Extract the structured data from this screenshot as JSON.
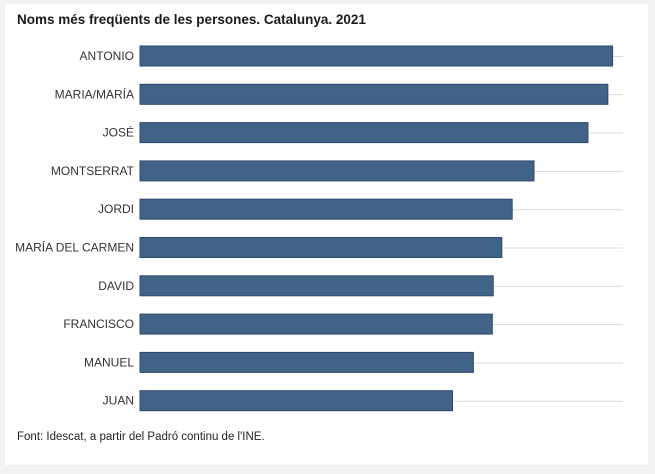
{
  "chart_data": {
    "type": "bar",
    "orientation": "horizontal",
    "title": "Noms més freqüents de les persones. Catalunya. 2021",
    "source": "Font: Idescat, a partir del Padró continu de l'INE.",
    "categories": [
      "ANTONIO",
      "MARIA/MARÍA",
      "JOSÉ",
      "MONTSERRAT",
      "JORDI",
      "MARÍA DEL CARMEN",
      "DAVID",
      "FRANCISCO",
      "MANUEL",
      "JUAN"
    ],
    "values": [
      49900,
      49400,
      47300,
      41600,
      39300,
      38200,
      37300,
      37200,
      35200,
      33000
    ],
    "xlim": [
      0,
      51000
    ],
    "grid": true,
    "bar_color": "#426388"
  }
}
